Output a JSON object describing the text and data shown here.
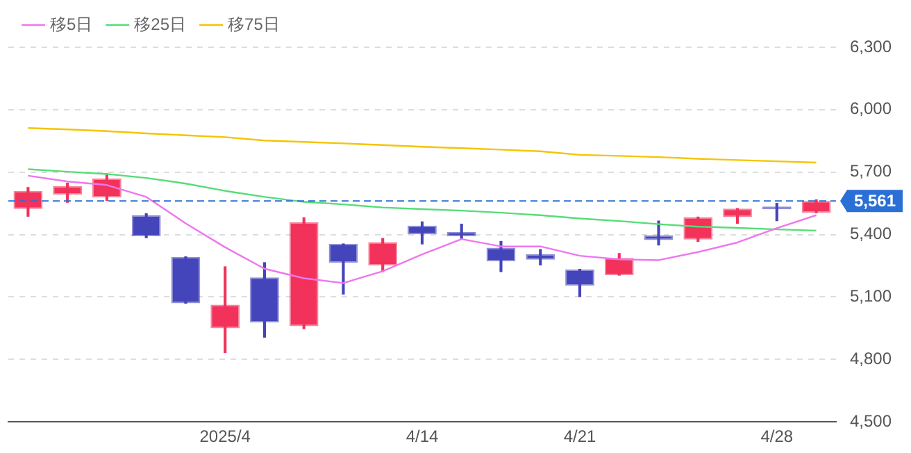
{
  "chart_data": {
    "type": "candlestick",
    "categories": [
      null,
      null,
      null,
      null,
      null,
      "2025/4",
      null,
      null,
      null,
      null,
      "4/14",
      null,
      null,
      null,
      "4/21",
      null,
      null,
      null,
      null,
      "4/28",
      null
    ],
    "ohlc": [
      [
        5523,
        5626,
        5488,
        5610
      ],
      [
        5592,
        5647,
        5555,
        5633
      ],
      [
        5578,
        5693,
        5564,
        5670
      ],
      [
        5493,
        5500,
        5385,
        5392
      ],
      [
        5293,
        5293,
        5070,
        5070
      ],
      [
        4950,
        5245,
        4833,
        5063
      ],
      [
        5194,
        5265,
        4907,
        4978
      ],
      [
        4960,
        5481,
        4948,
        5459
      ],
      [
        5355,
        5355,
        5114,
        5265
      ],
      [
        5252,
        5381,
        5222,
        5364
      ],
      [
        5443,
        5461,
        5355,
        5401
      ],
      [
        5412,
        5450,
        5381,
        5392
      ],
      [
        5337,
        5367,
        5222,
        5272
      ],
      [
        5305,
        5328,
        5254,
        5279
      ],
      [
        5233,
        5233,
        5102,
        5155
      ],
      [
        5205,
        5309,
        5205,
        5288
      ],
      [
        5397,
        5465,
        5350,
        5374
      ],
      [
        5376,
        5484,
        5367,
        5484
      ],
      [
        5484,
        5525,
        5454,
        5525
      ],
      [
        5535,
        5550,
        5467,
        5521
      ],
      [
        5505,
        5567,
        5505,
        5561
      ]
    ],
    "colors": [
      "#f2325a",
      "#f2325a",
      "#f2325a",
      "#4444bb",
      "#4444bb",
      "#f2325a",
      "#4444bb",
      "#f2325a",
      "#4444bb",
      "#f2325a",
      "#4444bb",
      "#4444bb",
      "#4444bb",
      "#4444bb",
      "#4444bb",
      "#f2325a",
      "#4444bb",
      "#f2325a",
      "#f2325a",
      "#4444bb",
      "#f2325a"
    ],
    "series": [
      {
        "name": "移5日",
        "type": "line",
        "color": "#ee77ee",
        "values": [
          5683,
          5655,
          5638,
          5581,
          5454,
          5339,
          5236,
          5190,
          5167,
          5224,
          5305,
          5378,
          5343,
          5343,
          5298,
          5281,
          5277,
          5316,
          5362,
          5431,
          5493
        ]
      },
      {
        "name": "移25日",
        "type": "line",
        "color": "#55dd77",
        "values": [
          5714,
          5702,
          5691,
          5672,
          5645,
          5610,
          5581,
          5557,
          5545,
          5530,
          5522,
          5515,
          5505,
          5493,
          5477,
          5465,
          5450,
          5438,
          5432,
          5425,
          5419
        ]
      },
      {
        "name": "移75日",
        "type": "line",
        "color": "#f5c400",
        "values": [
          5912,
          5905,
          5897,
          5886,
          5877,
          5868,
          5852,
          5845,
          5838,
          5830,
          5822,
          5815,
          5808,
          5800,
          5783,
          5778,
          5772,
          5764,
          5758,
          5752,
          5746
        ]
      }
    ],
    "ylim": [
      4500,
      6300
    ],
    "yticks": [
      {
        "value": 4500,
        "label": "4,500"
      },
      {
        "value": 4800,
        "label": "4,800"
      },
      {
        "value": 5100,
        "label": "5,100"
      },
      {
        "value": 5400,
        "label": "5,400"
      },
      {
        "value": 5700,
        "label": "5,700"
      },
      {
        "value": 6000,
        "label": "6,000"
      },
      {
        "value": 6300,
        "label": "6,300"
      }
    ],
    "grid": "y",
    "legend": "top left",
    "marker": "none",
    "ref_lines": [
      {
        "axis": "y",
        "value": 5561,
        "label": "5,561",
        "color": "#2a6fd6",
        "line_style": "dashed"
      }
    ]
  }
}
